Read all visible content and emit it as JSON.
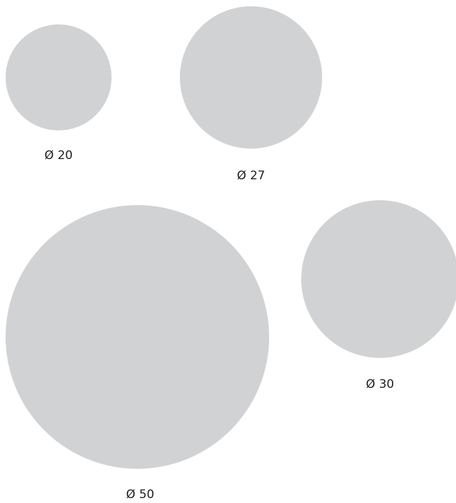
{
  "style": {
    "circle_color": "#d1d2d4",
    "label_color": "#231f20"
  },
  "circles": [
    {
      "label": "Ø 20",
      "diameter": 20
    },
    {
      "label": "Ø 27",
      "diameter": 27
    },
    {
      "label": "Ø 50",
      "diameter": 50
    },
    {
      "label": "Ø 30",
      "diameter": 30
    }
  ]
}
